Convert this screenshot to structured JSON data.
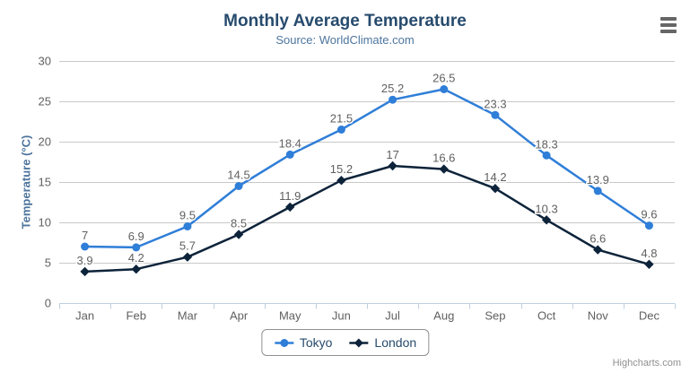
{
  "chart_data": {
    "type": "line",
    "title": "Monthly Average Temperature",
    "subtitle": "Source: WorldClimate.com",
    "xlabel": "",
    "ylabel": "Temperature (°C)",
    "ylim": [
      0,
      30
    ],
    "y_ticks": [
      0,
      5,
      10,
      15,
      20,
      25,
      30
    ],
    "grid": true,
    "legend_position": "bottom",
    "categories": [
      "Jan",
      "Feb",
      "Mar",
      "Apr",
      "May",
      "Jun",
      "Jul",
      "Aug",
      "Sep",
      "Oct",
      "Nov",
      "Dec"
    ],
    "series": [
      {
        "name": "Tokyo",
        "color": "#2f7ed8",
        "marker": "circle",
        "values": [
          7,
          6.9,
          9.5,
          14.5,
          18.4,
          21.5,
          25.2,
          26.5,
          23.3,
          18.3,
          13.9,
          9.6
        ]
      },
      {
        "name": "London",
        "color": "#0d233a",
        "marker": "diamond",
        "values": [
          3.9,
          4.2,
          5.7,
          8.5,
          11.9,
          15.2,
          17,
          16.6,
          14.2,
          10.3,
          6.6,
          4.8
        ]
      }
    ],
    "credits": "Highcharts.com"
  },
  "colors": {
    "background": "#ffffff",
    "title": "#274b6d",
    "subtitle": "#4d759e",
    "axis_title": "#4d759e",
    "axis_labels": "#606060",
    "data_labels": "#606060",
    "grid": "#c9c9c9",
    "axis_line": "#c0d0e0",
    "legend_text": "#274b6d",
    "legend_border": "#909090",
    "credits": "#909090",
    "menu_icon": "#666666"
  },
  "icons": {
    "menu": "hamburger-icon"
  }
}
